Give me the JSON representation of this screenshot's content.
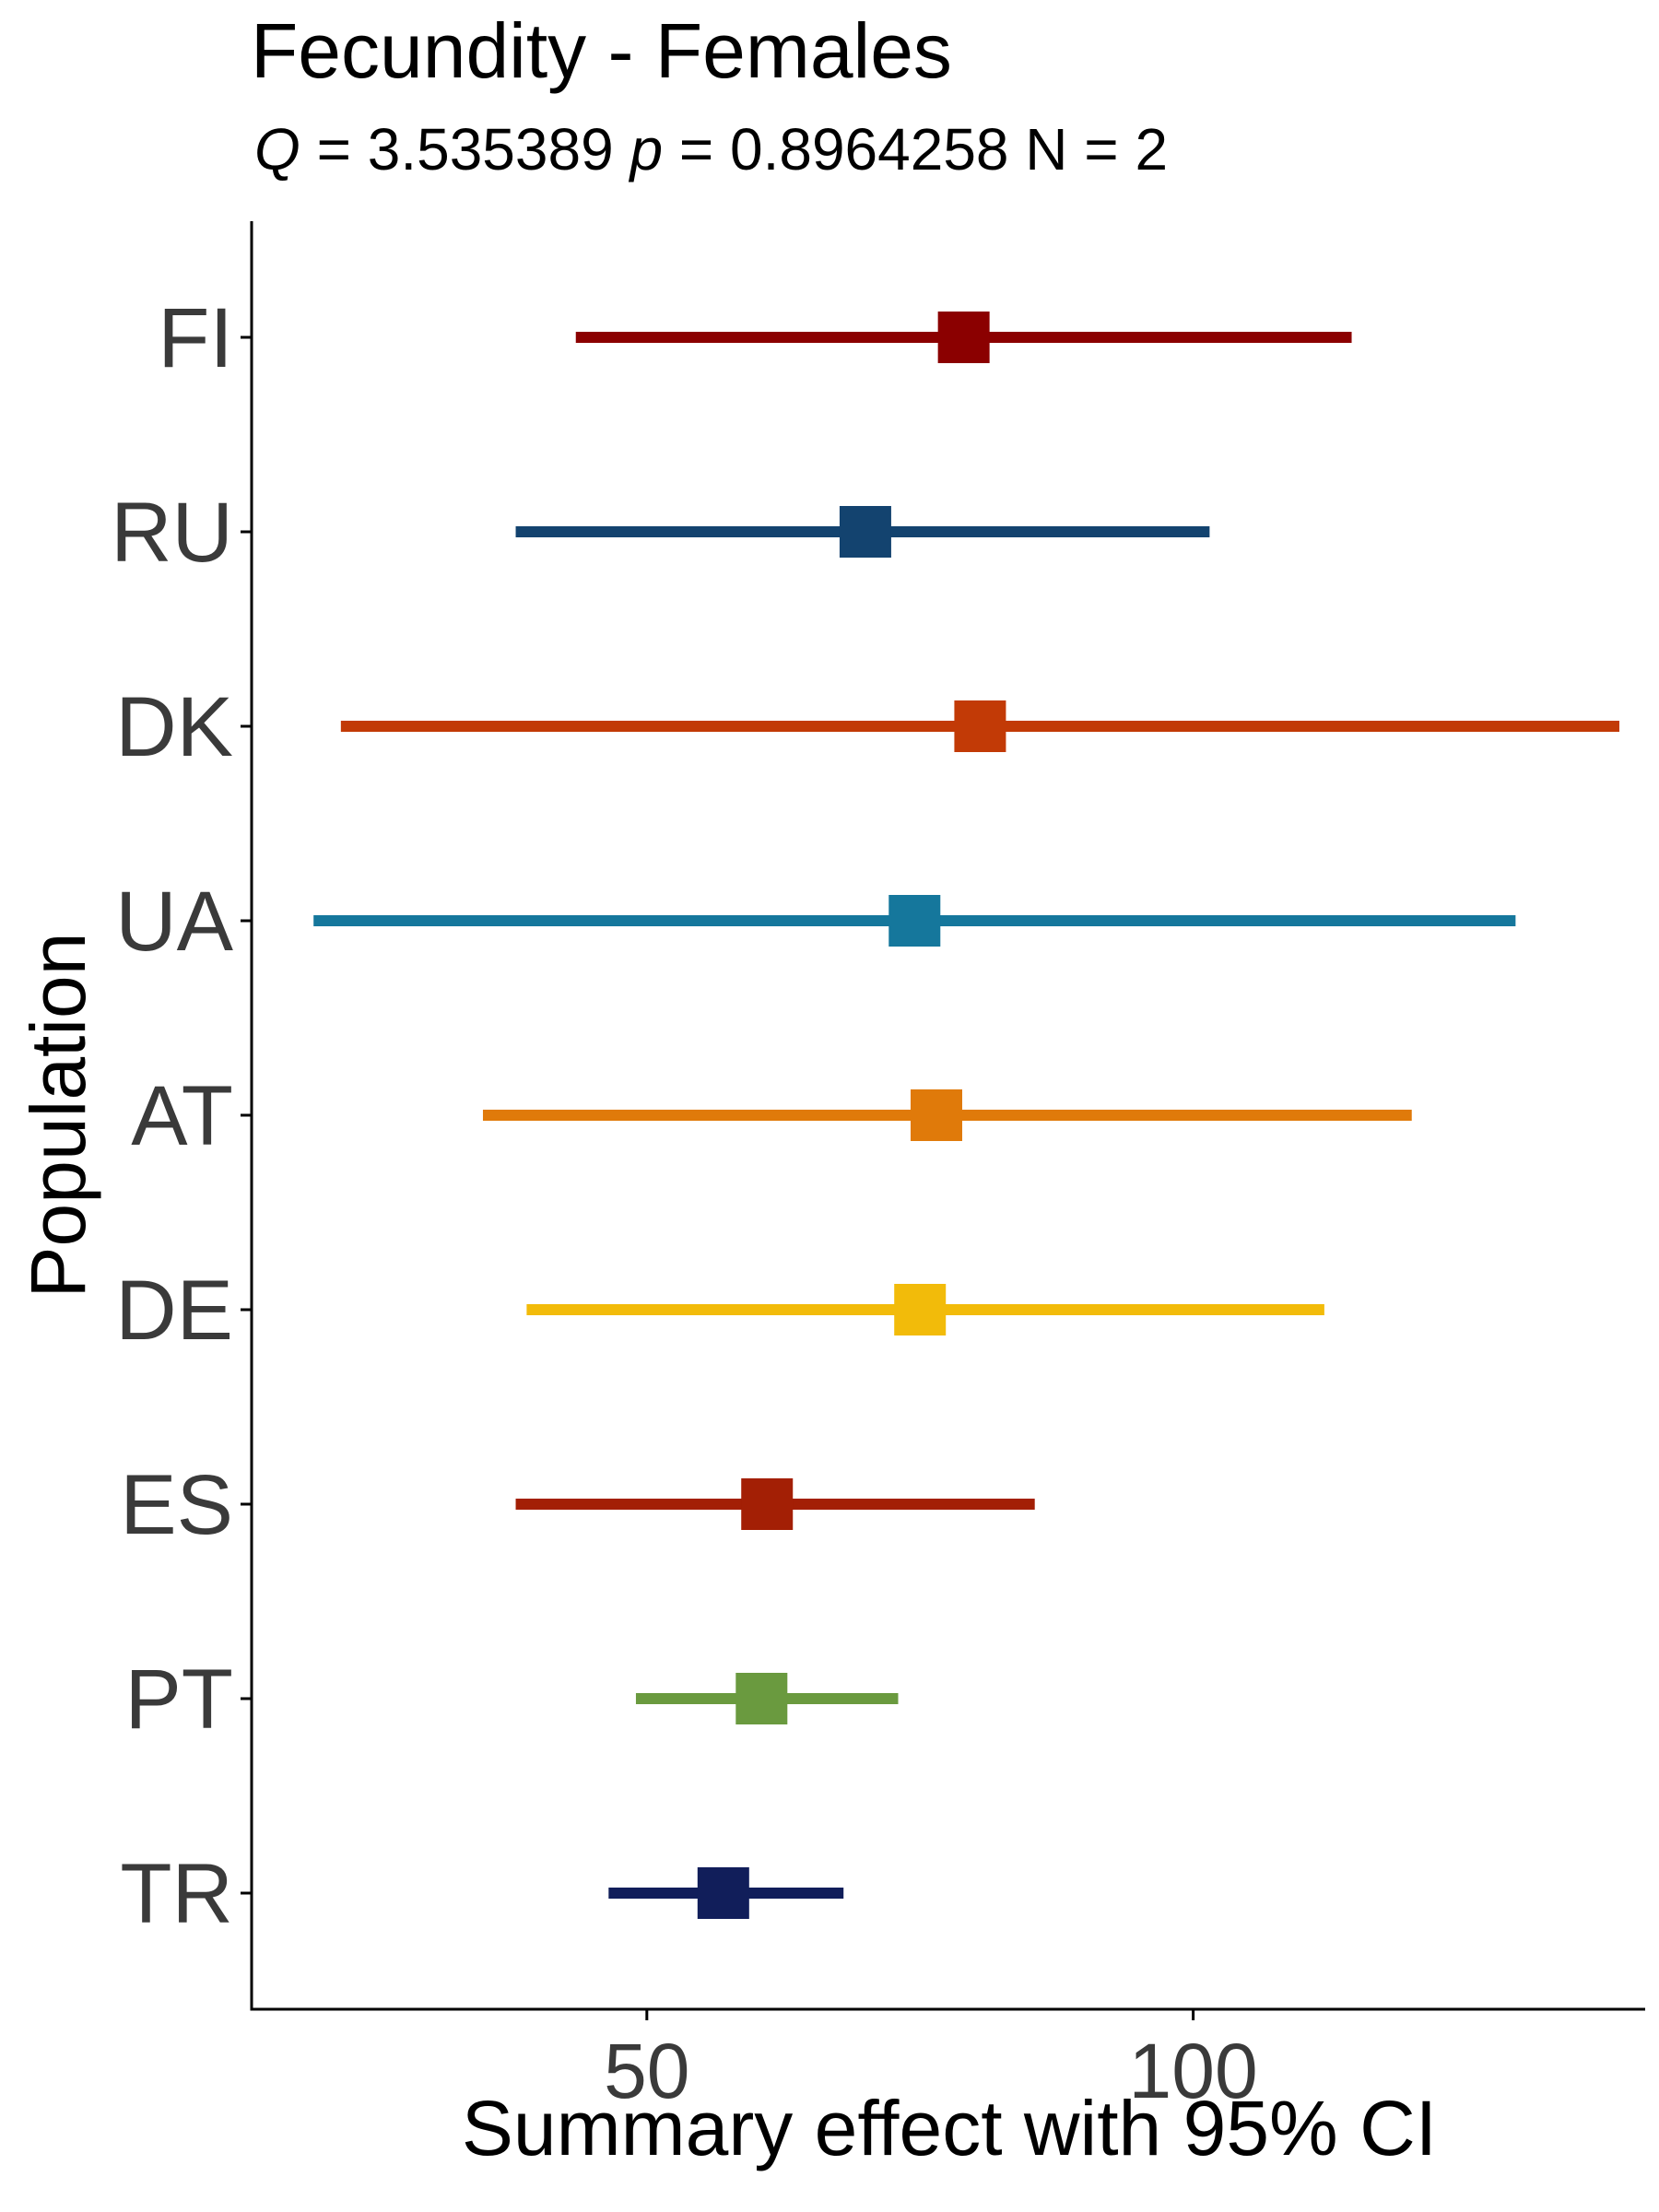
{
  "chart_data": {
    "type": "forest",
    "title": "Fecundity - Females",
    "subtitle": {
      "q_label": "Q",
      "q_value": " = 3.535389 ",
      "p_label": "p",
      "p_value": " = 0.8964258 N = 2"
    },
    "xlabel": "Summary effect with 95% CI",
    "ylabel": "Population",
    "xlim": [
      14,
      139
    ],
    "xticks": [
      {
        "value": 50,
        "label": "50"
      },
      {
        "value": 100,
        "label": "100"
      }
    ],
    "grid": false,
    "legend": "none",
    "series": [
      {
        "label": "FI",
        "estimate": 79.0,
        "lower": 43.5,
        "upper": 114.5,
        "color": "#8b0000"
      },
      {
        "label": "RU",
        "estimate": 70.0,
        "lower": 38.0,
        "upper": 101.5,
        "color": "#13436f"
      },
      {
        "label": "DK",
        "estimate": 80.5,
        "lower": 22.0,
        "upper": 139.0,
        "color": "#c23a06"
      },
      {
        "label": "UA",
        "estimate": 74.5,
        "lower": 19.5,
        "upper": 129.5,
        "color": "#15779c"
      },
      {
        "label": "AT",
        "estimate": 76.5,
        "lower": 35.0,
        "upper": 120.0,
        "color": "#e07a0a"
      },
      {
        "label": "DE",
        "estimate": 75.0,
        "lower": 39.0,
        "upper": 112.0,
        "color": "#f2bb0a"
      },
      {
        "label": "ES",
        "estimate": 61.0,
        "lower": 38.0,
        "upper": 85.5,
        "color": "#a31f05"
      },
      {
        "label": "PT",
        "estimate": 60.5,
        "lower": 49.0,
        "upper": 73.0,
        "color": "#6a9a3f"
      },
      {
        "label": "TR",
        "estimate": 57.0,
        "lower": 46.5,
        "upper": 68.0,
        "color": "#111e5a"
      }
    ]
  }
}
